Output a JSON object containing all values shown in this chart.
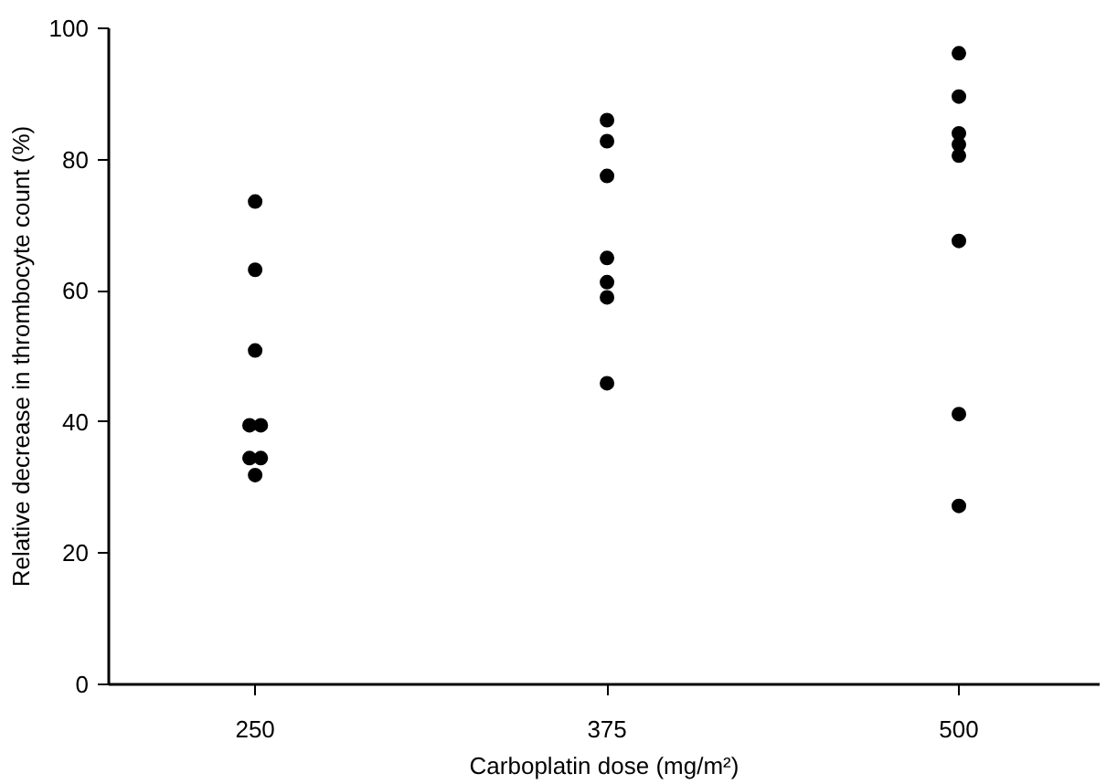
{
  "chart_data": {
    "type": "scatter",
    "xlabel": "Carboplatin dose (mg/m²)",
    "ylabel": "Relative decrease in thrombocyte count (%)",
    "x": [
      250,
      250,
      250,
      248,
      252,
      248,
      252,
      250,
      375,
      375,
      375,
      375,
      375,
      375,
      375,
      500,
      500,
      500,
      500,
      500,
      500,
      500,
      500
    ],
    "values": [
      73.6,
      63.2,
      50.9,
      39.5,
      39.5,
      34.5,
      34.5,
      31.9,
      86,
      82.8,
      77.5,
      65,
      61.3,
      59,
      45.9,
      96.2,
      89.6,
      84,
      82.3,
      80.6,
      67.6,
      41.2,
      27.2
    ],
    "color": "#000000",
    "marker": "circle",
    "xlim": [
      198,
      550
    ],
    "ylim": [
      0,
      100
    ],
    "xticks": [
      250,
      375,
      500
    ],
    "yticks": [
      0,
      20,
      40,
      60,
      80,
      100
    ],
    "grid": false
  }
}
